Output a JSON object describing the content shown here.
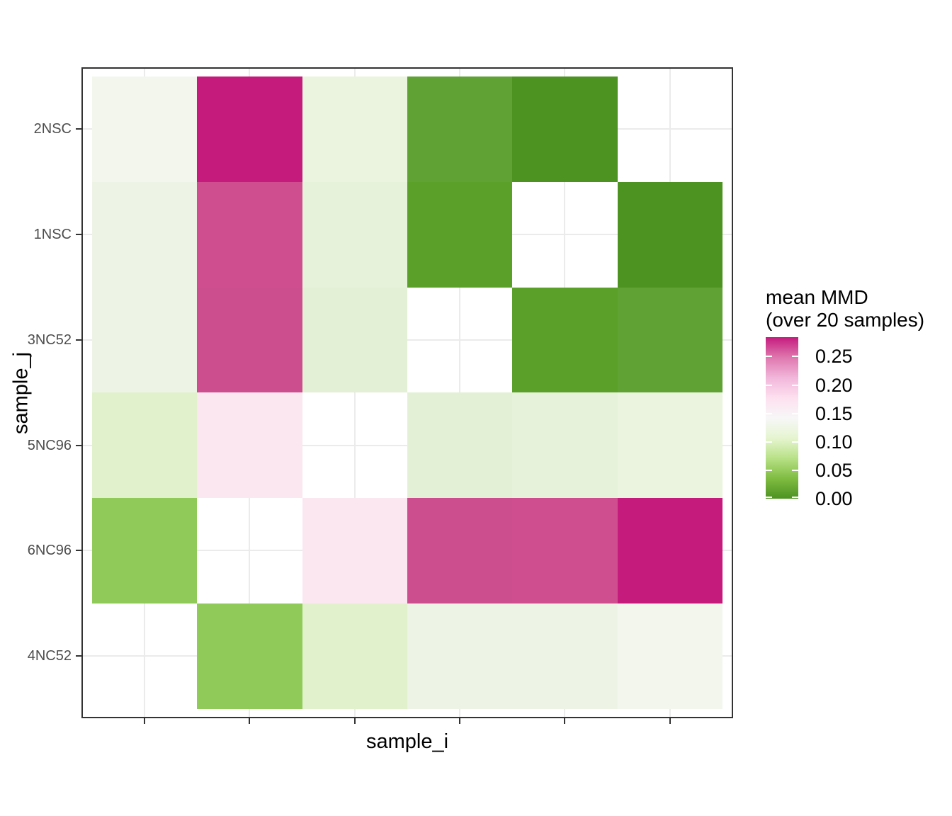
{
  "figure": {
    "background_color": "#ffffff",
    "panel_border_color": "#333333",
    "gridline_color": "#ebebeb",
    "axis_tick_color": "#333333",
    "axis_text_color": "#4d4d4d",
    "title_text_color": "#000000"
  },
  "axes": {
    "x_title": "sample_i",
    "y_title": "sample_j",
    "y_tick_labels": [
      "2NSC",
      "1NSC",
      "3NC52",
      "5NC96",
      "6NC96",
      "4NC52"
    ],
    "x_tick_labels": [
      "",
      "",
      "",
      "",
      "",
      ""
    ]
  },
  "legend": {
    "title_line1": "mean MMD",
    "title_line2": "(over 20 samples)",
    "tick_labels": [
      "0.25",
      "0.20",
      "0.15",
      "0.10",
      "0.05",
      "0.00"
    ]
  },
  "chart_data": {
    "type": "heatmap",
    "xlabel": "sample_i",
    "ylabel": "sample_j",
    "rows_top_to_bottom": [
      "2NSC",
      "1NSC",
      "3NC52",
      "5NC96",
      "6NC96",
      "4NC52"
    ],
    "n_columns": 6,
    "legend_title": "mean MMD (over 20 samples)",
    "scale": {
      "min": 0.0,
      "max": 0.28,
      "ticks": [
        0.25,
        0.2,
        0.15,
        0.1,
        0.05,
        0.0
      ],
      "palette": "PiYG reversed (green = low, magenta = high)",
      "colormap_top_to_bottom": [
        "#c51b7d",
        "#de77ae",
        "#f1b6da",
        "#fde0ef",
        "#f7f7f7",
        "#e6f5d0",
        "#b8e186",
        "#7fbc41",
        "#4d9221"
      ]
    },
    "values": [
      [
        0.13,
        0.28,
        0.115,
        0.013,
        0.002,
        null
      ],
      [
        0.12,
        0.26,
        0.11,
        0.01,
        null,
        0.002
      ],
      [
        0.12,
        0.26,
        0.105,
        null,
        0.01,
        0.013
      ],
      [
        0.1,
        0.17,
        null,
        0.105,
        0.11,
        0.115
      ],
      [
        0.045,
        null,
        0.17,
        0.26,
        0.26,
        0.28
      ],
      [
        null,
        0.045,
        0.1,
        0.12,
        0.12,
        0.13
      ]
    ],
    "cell_colors": [
      [
        "#f2f6ed",
        "#c51b7d",
        "#eaf4de",
        "#60a233",
        "#4d9322",
        null
      ],
      [
        "#eef4e5",
        "#cf4e8f",
        "#e7f2da",
        "#5aa029",
        null,
        "#4d9322"
      ],
      [
        "#eef4e5",
        "#cd4e8e",
        "#e3f0d5",
        null,
        "#5aa029",
        "#60a233"
      ],
      [
        "#e0f1cb",
        "#fbe7f0",
        null,
        "#e3f0d5",
        "#e7f2da",
        "#eaf4de"
      ],
      [
        "#90cb5a",
        null,
        "#fbe7f0",
        "#cd4e8e",
        "#cf4e8f",
        "#c51b7d"
      ],
      [
        null,
        "#90cb5a",
        "#e0f1cb",
        "#eef4e5",
        "#eef4e5",
        "#f2f6ed"
      ]
    ]
  }
}
